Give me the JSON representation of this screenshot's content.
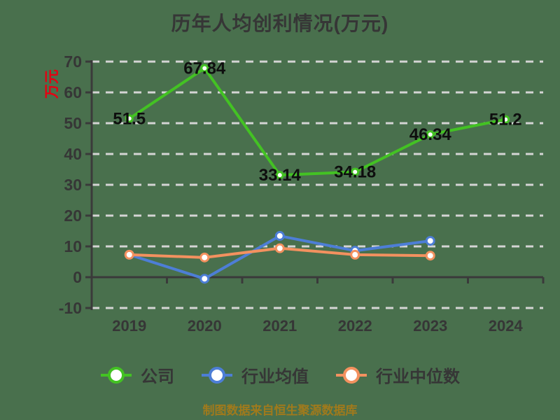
{
  "title": "历年人均创利情况(万元)",
  "caption": "制图数据来自恒生聚源数据库",
  "y_axis": {
    "unit_label": "万元",
    "unit_color": "#E60012",
    "ticks": [
      70,
      60,
      50,
      40,
      30,
      20,
      10,
      0,
      -10
    ]
  },
  "x_axis": {
    "categories": [
      "2019",
      "2020",
      "2021",
      "2022",
      "2023",
      "2024"
    ]
  },
  "legend": [
    {
      "key": "company",
      "label": "公司",
      "color": "#43C223"
    },
    {
      "key": "industry-average",
      "label": "行业均值",
      "color": "#4D7ED6"
    },
    {
      "key": "industry-median",
      "label": "行业中位数",
      "color": "#F3915F"
    }
  ],
  "colors": {
    "background": "#49704D",
    "axis": "#3A3A3A",
    "gridline": "#D4D4D4",
    "data_label": "#0E0E0E",
    "caption": "#A07A1C"
  },
  "chart_data": {
    "type": "line",
    "title": "历年人均创利情况(万元)",
    "categories": [
      "2019",
      "2020",
      "2021",
      "2022",
      "2023",
      "2024"
    ],
    "series": [
      {
        "key": "company",
        "name": "公司",
        "color": "#43C223",
        "values": [
          51.5,
          67.84,
          33.14,
          34.18,
          46.34,
          51.2
        ],
        "point_labels": [
          "51.5",
          "67.84",
          "33.14",
          "34.18",
          "46.34",
          "51.2"
        ]
      },
      {
        "key": "industry-average",
        "name": "行业均值",
        "color": "#4D7ED6",
        "values": [
          7.3,
          -0.5,
          13.4,
          8.6,
          11.8,
          null
        ]
      },
      {
        "key": "industry-median",
        "name": "行业中位数",
        "color": "#F3915F",
        "values": [
          7.3,
          6.4,
          9.4,
          7.3,
          7.0,
          null
        ]
      }
    ],
    "ylim": [
      -10,
      70
    ],
    "y_tick_step": 10,
    "grid": "horizontal dashed",
    "legend_position": "bottom",
    "x_axis_note": "axis line drawn at y=0; company series labeled at each point"
  }
}
